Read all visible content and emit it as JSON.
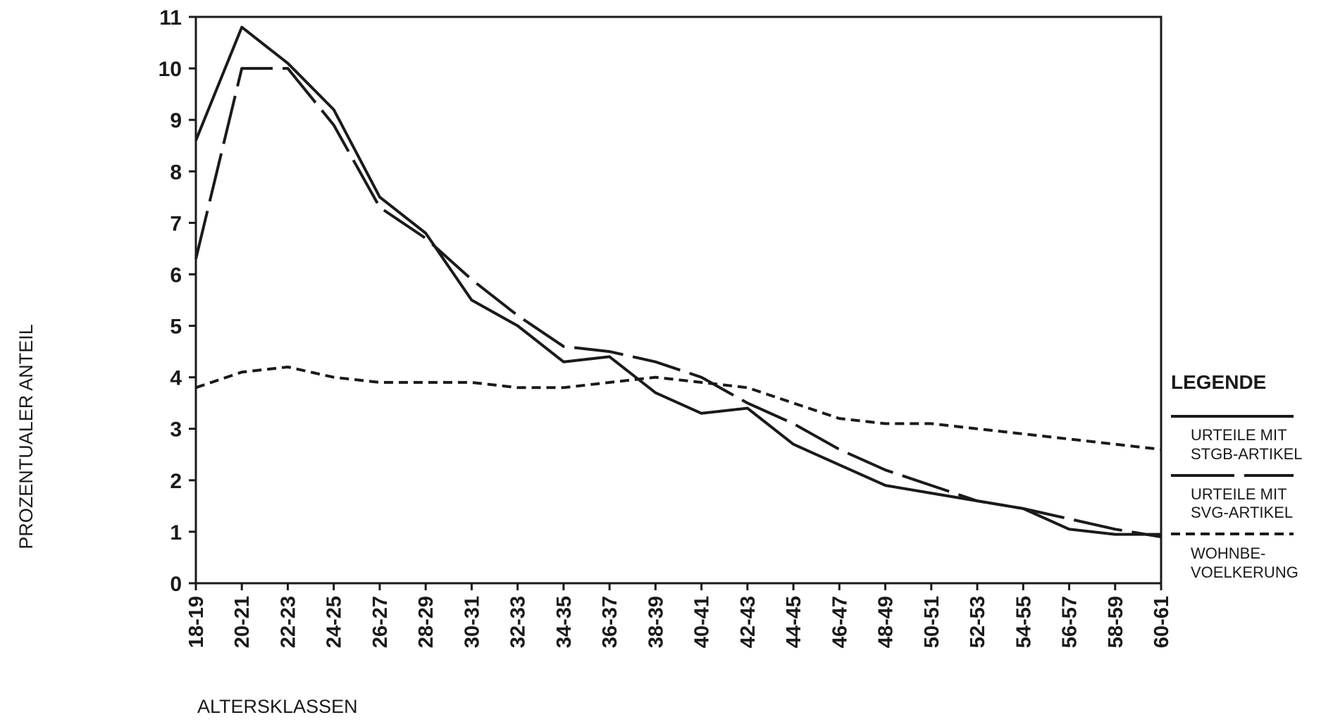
{
  "chart_data": {
    "type": "line",
    "xlabel": "ALTERSKLASSEN",
    "ylabel": "PROZENTUALER ANTEIL",
    "ylim": [
      0,
      11
    ],
    "yticks": [
      "0",
      "1",
      "2",
      "3",
      "4",
      "5",
      "6",
      "7",
      "8",
      "9",
      "10",
      "11"
    ],
    "grid": false,
    "legend_position": "right",
    "categories": [
      "18-19",
      "20-21",
      "22-23",
      "24-25",
      "26-27",
      "28-29",
      "30-31",
      "32-33",
      "34-35",
      "36-37",
      "38-39",
      "40-41",
      "42-43",
      "44-45",
      "46-47",
      "48-49",
      "50-51",
      "52-53",
      "54-55",
      "56-57",
      "58-59",
      "60-61"
    ],
    "legend": {
      "title": "LEGENDE",
      "entries": [
        {
          "line1": "URTEILE MIT",
          "line2": "STGB-ARTIKEL",
          "style": "solid"
        },
        {
          "line1": "URTEILE MIT",
          "line2": "SVG-ARTIKEL",
          "style": "long-dash"
        },
        {
          "line1": "WOHNBE-",
          "line2": "VOELKERUNG",
          "style": "short-dash"
        }
      ]
    },
    "series": [
      {
        "style": "solid",
        "values": [
          8.6,
          10.8,
          10.1,
          9.2,
          7.5,
          6.8,
          5.5,
          5.0,
          4.3,
          4.4,
          3.7,
          3.3,
          3.4,
          2.7,
          2.3,
          1.9,
          1.75,
          1.6,
          1.45,
          1.05,
          0.95,
          0.95
        ]
      },
      {
        "style": "long-dash",
        "values": [
          6.3,
          10.0,
          10.0,
          8.9,
          7.3,
          6.7,
          5.9,
          5.2,
          4.6,
          4.5,
          4.3,
          4.0,
          3.5,
          3.1,
          2.6,
          2.2,
          1.9,
          1.6,
          1.45,
          1.25,
          1.05,
          0.9
        ]
      },
      {
        "style": "short-dash",
        "values": [
          3.8,
          4.1,
          4.2,
          4.0,
          3.9,
          3.9,
          3.9,
          3.8,
          3.8,
          3.9,
          4.0,
          3.9,
          3.8,
          3.5,
          3.2,
          3.1,
          3.1,
          3.0,
          2.9,
          2.8,
          2.7,
          2.6
        ]
      }
    ]
  },
  "colors": {
    "ink": "#1a1a1a",
    "background": "#ffffff"
  }
}
